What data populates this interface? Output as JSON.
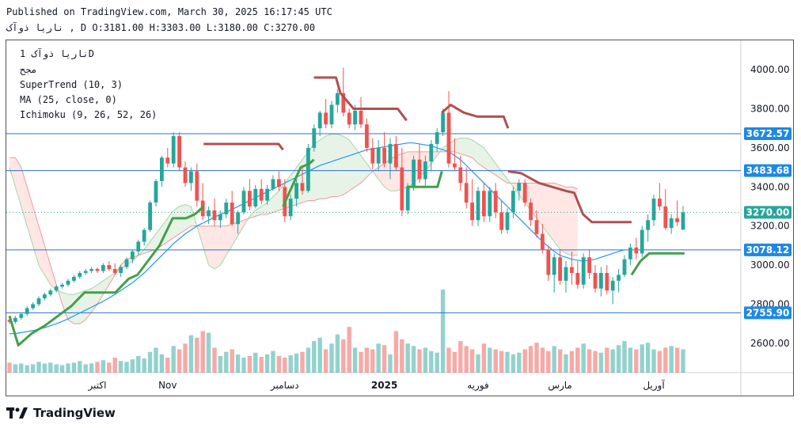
{
  "header": {
    "published": "Published on TradingView.com, March 30, 2025 16:17:45 UTC",
    "ohlc_line": "ناریا ذوآک , D O:3181.00 H:3303.00 L:3180.00 C:3270.00"
  },
  "legend": {
    "symbol": "ناریا ذوآک 1D",
    "exchange": "مجح",
    "supertrend": "SuperTrend (10, 3)",
    "ma": "MA (25, close, 0)",
    "ichimoku": "Ichimoku (9, 26, 52, 26)"
  },
  "footer": {
    "brand": "TradingView"
  },
  "colors": {
    "up": "#26a69a",
    "down": "#ef5350",
    "supertrend_up": "#43a047",
    "supertrend_down": "#b05050",
    "ma": "#2196f3",
    "hline": "#2a6fdb",
    "price_tag": "#1e88e5"
  },
  "chart_data": {
    "type": "candlestick",
    "title": "",
    "ylim": [
      2450,
      4150
    ],
    "y_ticks": [
      2600,
      2800,
      3000,
      3200,
      3400,
      3600,
      3800,
      4000
    ],
    "y_tick_labels": [
      "2600.00",
      "2800.00",
      "3000.00",
      "3200.00",
      "3400.00",
      "3600.00",
      "3800.00",
      "4000.00"
    ],
    "x_labels": [
      {
        "label": "اکتبر",
        "i": 15
      },
      {
        "label": "Nov",
        "i": 27
      },
      {
        "label": "دسامبر",
        "i": 47
      },
      {
        "label": "2025",
        "i": 64
      },
      {
        "label": "فوریه",
        "i": 80
      },
      {
        "label": "مارس",
        "i": 94
      },
      {
        "label": "آوریل",
        "i": 110
      }
    ],
    "horizontal_lines": [
      {
        "value": 3672.57,
        "label": "3672.57"
      },
      {
        "value": 3483.68,
        "label": "3483.68"
      },
      {
        "value": 3078.12,
        "label": "3078.12"
      },
      {
        "value": 2755.9,
        "label": "2755.90"
      }
    ],
    "last_price": {
      "value": 3270.0,
      "label": "3270.00"
    },
    "candles": [
      [
        2720,
        2730,
        2700,
        2710
      ],
      [
        2710,
        2740,
        2700,
        2730
      ],
      [
        2730,
        2760,
        2720,
        2750
      ],
      [
        2750,
        2790,
        2740,
        2780
      ],
      [
        2780,
        2810,
        2770,
        2800
      ],
      [
        2800,
        2840,
        2790,
        2830
      ],
      [
        2830,
        2860,
        2820,
        2850
      ],
      [
        2850,
        2880,
        2840,
        2870
      ],
      [
        2870,
        2900,
        2860,
        2890
      ],
      [
        2890,
        2910,
        2880,
        2900
      ],
      [
        2900,
        2930,
        2890,
        2920
      ],
      [
        2920,
        2950,
        2910,
        2940
      ],
      [
        2940,
        2970,
        2930,
        2960
      ],
      [
        2960,
        2980,
        2950,
        2970
      ],
      [
        2970,
        2990,
        2960,
        2980
      ],
      [
        2980,
        2990,
        2960,
        2970
      ],
      [
        2970,
        3010,
        2960,
        3000
      ],
      [
        3000,
        3020,
        2970,
        2980
      ],
      [
        2980,
        3010,
        2950,
        2960
      ],
      [
        2960,
        3000,
        2940,
        2990
      ],
      [
        2990,
        3040,
        2980,
        3030
      ],
      [
        3030,
        3080,
        3010,
        3070
      ],
      [
        3070,
        3130,
        3050,
        3120
      ],
      [
        3120,
        3190,
        3100,
        3180
      ],
      [
        3180,
        3330,
        3170,
        3320
      ],
      [
        3320,
        3440,
        3300,
        3430
      ],
      [
        3430,
        3560,
        3400,
        3550
      ],
      [
        3550,
        3600,
        3500,
        3520
      ],
      [
        3520,
        3680,
        3500,
        3660
      ],
      [
        3660,
        3680,
        3480,
        3500
      ],
      [
        3500,
        3530,
        3400,
        3420
      ],
      [
        3420,
        3500,
        3380,
        3480
      ],
      [
        3480,
        3520,
        3300,
        3330
      ],
      [
        3330,
        3420,
        3230,
        3250
      ],
      [
        3250,
        3300,
        3210,
        3280
      ],
      [
        3280,
        3340,
        3200,
        3230
      ],
      [
        3230,
        3280,
        3190,
        3260
      ],
      [
        3260,
        3340,
        3240,
        3320
      ],
      [
        3320,
        3380,
        3200,
        3210
      ],
      [
        3210,
        3280,
        3160,
        3270
      ],
      [
        3270,
        3400,
        3260,
        3380
      ],
      [
        3380,
        3440,
        3280,
        3300
      ],
      [
        3300,
        3410,
        3290,
        3390
      ],
      [
        3390,
        3440,
        3310,
        3330
      ],
      [
        3330,
        3410,
        3310,
        3390
      ],
      [
        3390,
        3460,
        3380,
        3440
      ],
      [
        3440,
        3480,
        3380,
        3400
      ],
      [
        3400,
        3440,
        3220,
        3250
      ],
      [
        3250,
        3360,
        3230,
        3340
      ],
      [
        3340,
        3440,
        3300,
        3420
      ],
      [
        3420,
        3500,
        3360,
        3380
      ],
      [
        3380,
        3620,
        3370,
        3600
      ],
      [
        3600,
        3720,
        3580,
        3700
      ],
      [
        3700,
        3790,
        3660,
        3780
      ],
      [
        3780,
        3850,
        3700,
        3720
      ],
      [
        3720,
        3840,
        3700,
        3820
      ],
      [
        3820,
        3900,
        3780,
        3880
      ],
      [
        3880,
        4010,
        3760,
        3780
      ],
      [
        3780,
        3800,
        3700,
        3720
      ],
      [
        3720,
        3820,
        3690,
        3790
      ],
      [
        3790,
        3860,
        3700,
        3720
      ],
      [
        3720,
        3750,
        3580,
        3600
      ],
      [
        3600,
        3650,
        3490,
        3520
      ],
      [
        3520,
        3640,
        3480,
        3600
      ],
      [
        3600,
        3680,
        3500,
        3520
      ],
      [
        3520,
        3650,
        3440,
        3620
      ],
      [
        3620,
        3660,
        3480,
        3500
      ],
      [
        3500,
        3600,
        3250,
        3280
      ],
      [
        3280,
        3420,
        3260,
        3400
      ],
      [
        3400,
        3560,
        3380,
        3540
      ],
      [
        3540,
        3620,
        3420,
        3440
      ],
      [
        3440,
        3560,
        3400,
        3530
      ],
      [
        3530,
        3640,
        3480,
        3620
      ],
      [
        3620,
        3700,
        3580,
        3680
      ],
      [
        3680,
        3800,
        3660,
        3780
      ],
      [
        3780,
        3890,
        3500,
        3520
      ],
      [
        3520,
        3650,
        3480,
        3500
      ],
      [
        3500,
        3560,
        3380,
        3420
      ],
      [
        3420,
        3500,
        3290,
        3320
      ],
      [
        3320,
        3440,
        3200,
        3230
      ],
      [
        3230,
        3400,
        3200,
        3380
      ],
      [
        3380,
        3420,
        3220,
        3250
      ],
      [
        3250,
        3400,
        3220,
        3380
      ],
      [
        3380,
        3420,
        3240,
        3270
      ],
      [
        3270,
        3330,
        3160,
        3180
      ],
      [
        3180,
        3290,
        3160,
        3270
      ],
      [
        3270,
        3400,
        3240,
        3380
      ],
      [
        3380,
        3440,
        3330,
        3420
      ],
      [
        3420,
        3440,
        3300,
        3320
      ],
      [
        3320,
        3340,
        3200,
        3230
      ],
      [
        3230,
        3280,
        3140,
        3160
      ],
      [
        3160,
        3210,
        3060,
        3080
      ],
      [
        3080,
        3100,
        2920,
        2950
      ],
      [
        2950,
        3060,
        2860,
        3040
      ],
      [
        3040,
        3080,
        2900,
        2920
      ],
      [
        2920,
        3020,
        2860,
        2990
      ],
      [
        2990,
        3070,
        2900,
        2960
      ],
      [
        2960,
        3020,
        2880,
        2900
      ],
      [
        2900,
        3060,
        2880,
        3040
      ],
      [
        3040,
        3080,
        2930,
        2960
      ],
      [
        2960,
        3000,
        2860,
        2880
      ],
      [
        2880,
        2990,
        2840,
        2960
      ],
      [
        2960,
        3000,
        2850,
        2870
      ],
      [
        2870,
        2940,
        2800,
        2920
      ],
      [
        2920,
        2980,
        2860,
        2950
      ],
      [
        2950,
        3050,
        2940,
        3030
      ],
      [
        3030,
        3110,
        3000,
        3090
      ],
      [
        3090,
        3140,
        3030,
        3060
      ],
      [
        3060,
        3200,
        3040,
        3180
      ],
      [
        3180,
        3260,
        3120,
        3230
      ],
      [
        3230,
        3360,
        3200,
        3340
      ],
      [
        3340,
        3420,
        3280,
        3300
      ],
      [
        3300,
        3390,
        3180,
        3190
      ],
      [
        3190,
        3260,
        3160,
        3240
      ],
      [
        3240,
        3330,
        3200,
        3220
      ],
      [
        3181,
        3303,
        3180,
        3270
      ]
    ],
    "volumes": [
      12,
      10,
      11,
      9,
      10,
      13,
      11,
      12,
      10,
      9,
      11,
      12,
      14,
      10,
      11,
      13,
      15,
      12,
      18,
      14,
      13,
      16,
      20,
      17,
      25,
      30,
      22,
      18,
      32,
      28,
      35,
      45,
      42,
      50,
      48,
      30,
      20,
      25,
      28,
      22,
      18,
      20,
      24,
      19,
      22,
      26,
      20,
      18,
      21,
      23,
      25,
      30,
      38,
      42,
      28,
      35,
      46,
      40,
      55,
      30,
      25,
      30,
      28,
      35,
      33,
      22,
      50,
      40,
      35,
      32,
      28,
      30,
      26,
      24,
      100,
      30,
      25,
      38,
      32,
      28,
      22,
      35,
      30,
      28,
      26,
      25,
      22,
      24,
      28,
      32,
      36,
      30,
      26,
      32,
      28,
      22,
      26,
      30,
      35,
      28,
      26,
      24,
      30,
      28,
      33,
      38,
      30,
      28,
      34,
      36,
      28,
      26,
      30,
      32,
      30,
      28
    ],
    "supertrend_segments": [
      {
        "trend": "up",
        "values": [
          [
            0,
            2740
          ],
          [
            2,
            2590
          ],
          [
            5,
            2650
          ],
          [
            8,
            2690
          ],
          [
            11,
            2740
          ],
          [
            14,
            2790
          ],
          [
            17,
            2860
          ],
          [
            22,
            2860
          ],
          [
            24,
            2860
          ],
          [
            27,
            2930
          ],
          [
            29,
            2950
          ],
          [
            32,
            3040
          ],
          [
            34,
            3100
          ],
          [
            37,
            3240
          ],
          [
            40,
            3240
          ],
          [
            42,
            3260
          ],
          [
            44,
            3300
          ]
        ]
      },
      {
        "trend": "down",
        "values": [
          [
            44,
            3620
          ],
          [
            46,
            3620
          ],
          [
            50,
            3620
          ],
          [
            54,
            3620
          ],
          [
            58,
            3620
          ],
          [
            61,
            3620
          ],
          [
            62,
            3590
          ]
        ]
      },
      {
        "trend": "up",
        "values": [
          [
            62,
            3300
          ],
          [
            64,
            3400
          ],
          [
            66,
            3500
          ],
          [
            68,
            3520
          ],
          [
            69,
            3540
          ]
        ]
      },
      {
        "trend": "down",
        "values": [
          [
            69,
            3960
          ],
          [
            74,
            3960
          ],
          [
            75,
            3880
          ],
          [
            78,
            3800
          ],
          [
            88,
            3800
          ],
          [
            90,
            3740
          ]
        ]
      },
      {
        "trend": "up",
        "values": [
          [
            90,
            3400
          ],
          [
            94,
            3400
          ],
          [
            97,
            3400
          ],
          [
            98,
            3480
          ]
        ]
      },
      {
        "trend": "down",
        "values": [
          [
            98,
            3780
          ],
          [
            100,
            3820
          ],
          [
            103,
            3780
          ],
          [
            106,
            3760
          ],
          [
            109,
            3760
          ],
          [
            112,
            3760
          ],
          [
            113,
            3700
          ]
        ]
      },
      {
        "trend": "down",
        "values": [
          [
            113,
            3480
          ],
          [
            116,
            3470
          ],
          [
            120,
            3420
          ],
          [
            126,
            3380
          ],
          [
            128,
            3370
          ],
          [
            130,
            3260
          ],
          [
            132,
            3220
          ],
          [
            138,
            3220
          ],
          [
            141,
            3220
          ]
        ]
      },
      {
        "trend": "up",
        "values": [
          [
            141,
            2950
          ],
          [
            143,
            3020
          ],
          [
            145,
            3060
          ],
          [
            153,
            3060
          ]
        ]
      }
    ],
    "ma": [
      2650,
      2650,
      2655,
      2660,
      2665,
      2672,
      2680,
      2690,
      2700,
      2712,
      2725,
      2740,
      2755,
      2770,
      2785,
      2800,
      2815,
      2832,
      2850,
      2870,
      2890,
      2910,
      2935,
      2960,
      2990,
      3020,
      3050,
      3080,
      3110,
      3135,
      3160,
      3180,
      3200,
      3215,
      3230,
      3245,
      3260,
      3272,
      3285,
      3300,
      3315,
      3330,
      3345,
      3360,
      3375,
      3390,
      3405,
      3420,
      3435,
      3450,
      3465,
      3480,
      3495,
      3510,
      3520,
      3530,
      3540,
      3550,
      3560,
      3570,
      3580,
      3590,
      3595,
      3600,
      3605,
      3610,
      3615,
      3620,
      3625,
      3625,
      3620,
      3615,
      3610,
      3600,
      3590,
      3580,
      3560,
      3540,
      3510,
      3480,
      3450,
      3420,
      3390,
      3360,
      3330,
      3300,
      3270,
      3240,
      3210,
      3180,
      3150,
      3120,
      3095,
      3070,
      3050,
      3040,
      3030,
      3025,
      3020,
      3025,
      3030,
      3040,
      3050,
      3060,
      3070,
      3078
    ],
    "ichimoku": {
      "span_a": [
        3500,
        3400,
        3300,
        3200,
        3100,
        3000,
        2950,
        2900,
        2870,
        2860,
        2850,
        2850,
        2860,
        2870,
        2880,
        2900,
        2920,
        2940,
        2960,
        2980,
        3000,
        3020,
        3050,
        3080,
        3120,
        3160,
        3200,
        3240,
        3280,
        3300,
        3310,
        3300,
        3200,
        3100,
        3000,
        2980,
        3000,
        3050,
        3100,
        3150,
        3200,
        3250,
        3280,
        3300,
        3320,
        3350,
        3380,
        3420,
        3460,
        3500,
        3540,
        3580,
        3620,
        3640,
        3660,
        3670,
        3670,
        3660,
        3640,
        3600,
        3560,
        3520,
        3480,
        3440,
        3400,
        3380,
        3380,
        3390,
        3400,
        3420,
        3450,
        3480,
        3520,
        3560,
        3600,
        3620,
        3640,
        3650,
        3650,
        3640,
        3620,
        3600,
        3560,
        3520,
        3480,
        3440,
        3400,
        3360,
        3320,
        3280,
        3240,
        3200,
        3160,
        3120,
        3080,
        3060,
        3050,
        3050
      ],
      "span_b": [
        3550,
        3550,
        3500,
        3400,
        3300,
        3200,
        3100,
        3000,
        2900,
        2800,
        2720,
        2700,
        2700,
        2720,
        2760,
        2800,
        2850,
        2900,
        2950,
        3000,
        3030,
        3040,
        3050,
        3060,
        3070,
        3080,
        3100,
        3120,
        3140,
        3160,
        3180,
        3200,
        3200,
        3200,
        3200,
        3200,
        3200,
        3200,
        3210,
        3220,
        3230,
        3240,
        3250,
        3260,
        3260,
        3270,
        3280,
        3290,
        3300,
        3310,
        3320,
        3330,
        3330,
        3340,
        3340,
        3350,
        3350,
        3360,
        3380,
        3400,
        3420,
        3450,
        3480,
        3500,
        3520,
        3540,
        3560,
        3570,
        3580,
        3580,
        3580,
        3580,
        3580,
        3580,
        3580,
        3580,
        3580,
        3570,
        3560,
        3550,
        3520,
        3500,
        3480,
        3460,
        3440,
        3420,
        3420,
        3420,
        3420,
        3420,
        3420,
        3420,
        3420,
        3420,
        3410,
        3400,
        3400,
        3390
      ]
    }
  }
}
